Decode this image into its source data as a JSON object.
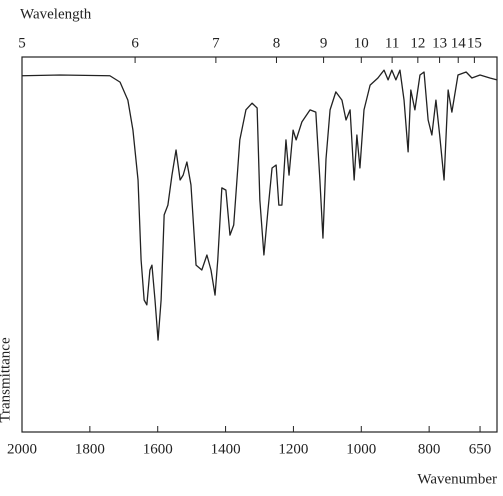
{
  "chart_data": {
    "type": "line",
    "x_label_top": "Wavelength",
    "x_label": "Wavenumber",
    "y_label": "Transmittance",
    "color": "#222222",
    "xlim": [
      2000,
      600
    ],
    "ylim": [
      0,
      100
    ],
    "xticks": [
      2000,
      1800,
      1600,
      1400,
      1200,
      1000,
      800,
      650
    ],
    "x2ticks": [
      5,
      6,
      7,
      8,
      9,
      10,
      11,
      12,
      13,
      14,
      15
    ],
    "x": [
      2000,
      1888,
      1741,
      1711,
      1688,
      1673,
      1658,
      1649,
      1640,
      1632,
      1623,
      1617,
      1608,
      1599,
      1590,
      1581,
      1570,
      1558,
      1546,
      1534,
      1525,
      1514,
      1502,
      1487,
      1470,
      1455,
      1443,
      1431,
      1423,
      1411,
      1399,
      1387,
      1376,
      1358,
      1340,
      1322,
      1307,
      1299,
      1287,
      1275,
      1263,
      1251,
      1243,
      1234,
      1222,
      1213,
      1201,
      1192,
      1175,
      1151,
      1134,
      1122,
      1113,
      1104,
      1092,
      1075,
      1057,
      1045,
      1033,
      1021,
      1013,
      1004,
      992,
      974,
      951,
      933,
      921,
      910,
      898,
      886,
      874,
      862,
      854,
      842,
      827,
      815,
      803,
      792,
      780,
      769,
      756,
      744,
      733,
      715,
      691,
      674,
      650,
      621,
      600
    ],
    "values": [
      95,
      95.2,
      95,
      93.3,
      88.5,
      80.5,
      67.2,
      45.9,
      35.2,
      33.9,
      43.2,
      44.5,
      35.2,
      24.5,
      35.2,
      57.9,
      60.5,
      68.5,
      75.2,
      67.2,
      68.5,
      72,
      65.9,
      44.5,
      43.2,
      47.2,
      43.2,
      36.5,
      45.9,
      65.1,
      64.5,
      52.5,
      55.2,
      77.9,
      85.9,
      87.7,
      86.4,
      61.9,
      47.2,
      59.2,
      70.4,
      71.2,
      60.5,
      60.5,
      77.9,
      68.5,
      80.5,
      77.9,
      82.7,
      85.9,
      85.3,
      67.2,
      51.7,
      72.8,
      85.9,
      90.7,
      88.5,
      83.2,
      85.9,
      67.2,
      79.2,
      70.4,
      85.9,
      92.5,
      94.4,
      96.5,
      93.9,
      96.5,
      93.9,
      96.5,
      88.5,
      74.7,
      91.2,
      85.9,
      95.2,
      96,
      83.2,
      79.2,
      88.5,
      79.2,
      67.2,
      91.2,
      85.3,
      95.2,
      96,
      94.4,
      95.2,
      94.4,
      93.9
    ]
  }
}
